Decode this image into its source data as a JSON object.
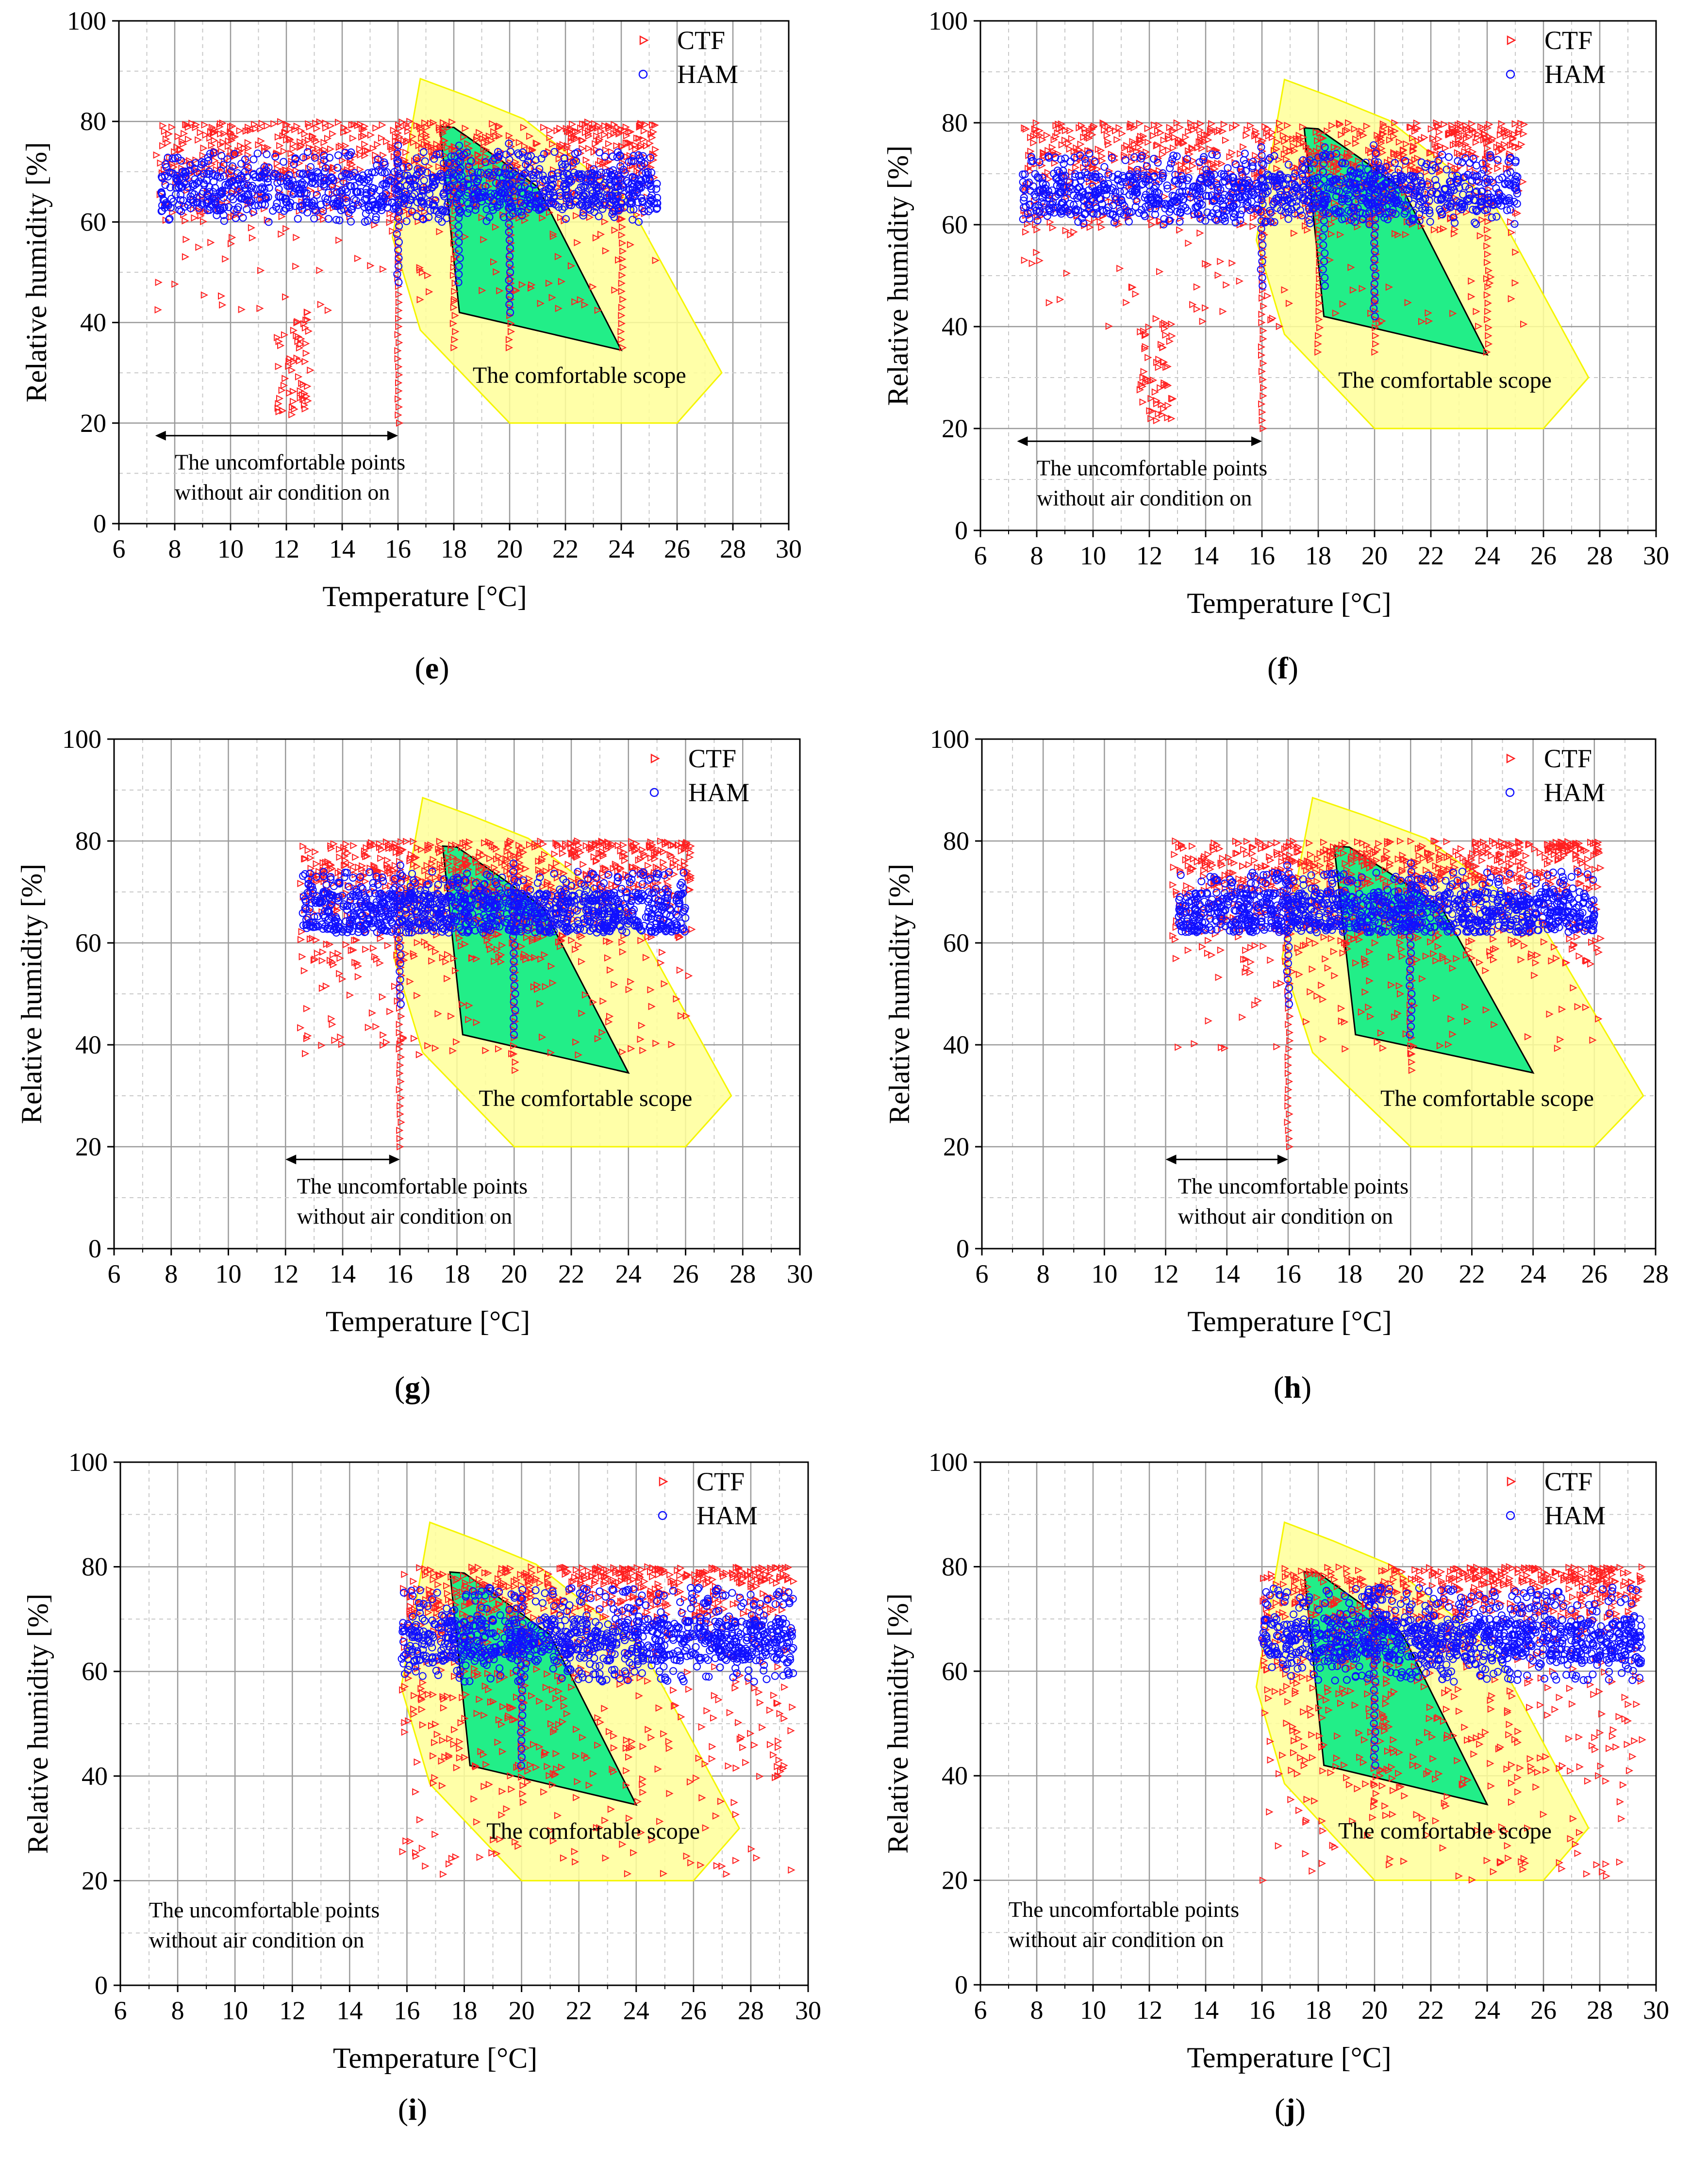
{
  "chart_data": [
    {
      "panel": "e",
      "type": "scatter",
      "xlabel": "Temperature [°C]",
      "ylabel": "Relative humidity [%]",
      "xlim": [
        6,
        30
      ],
      "ylim": [
        0,
        100
      ],
      "xticks": [
        6,
        8,
        10,
        12,
        14,
        16,
        18,
        20,
        22,
        24,
        26,
        28,
        30
      ],
      "yticks": [
        0,
        20,
        40,
        60,
        80,
        100
      ],
      "legend": [
        "CTF",
        "HAM"
      ],
      "comfort_label": "The comfortable scope",
      "uncomfortable_label": [
        "The uncomfortable points",
        "without air condition on"
      ],
      "arrow_range": [
        7.3,
        16
      ],
      "series": [
        {
          "name": "CTF",
          "tmin": 7.3,
          "tmax": 25.3,
          "band": [
            60,
            80
          ],
          "spikes": [
            16,
            18,
            20,
            24
          ],
          "low_tail": [
            12,
            21
          ]
        },
        {
          "name": "HAM",
          "tmin": 7.5,
          "tmax": 25.3,
          "band": [
            60,
            74
          ],
          "spikes": [
            16,
            18.2,
            20
          ]
        }
      ]
    },
    {
      "panel": "f",
      "type": "scatter",
      "xlabel": "Temperature [°C]",
      "ylabel": "Relative humidity [%]",
      "xlim": [
        6,
        30
      ],
      "ylim": [
        0,
        100
      ],
      "xticks": [
        6,
        8,
        10,
        12,
        14,
        16,
        18,
        20,
        22,
        24,
        26,
        28,
        30
      ],
      "yticks": [
        0,
        20,
        40,
        60,
        80,
        100
      ],
      "legend": [
        "CTF",
        "HAM"
      ],
      "comfort_label": "The comfortable scope",
      "uncomfortable_label": [
        "The uncomfortable points",
        "without air condition on"
      ],
      "arrow_range": [
        7.3,
        16
      ],
      "series": [
        {
          "name": "CTF",
          "tmin": 7.5,
          "tmax": 25.3,
          "band": [
            58,
            80
          ],
          "spikes": [
            16,
            18,
            20,
            24
          ],
          "low_tail": [
            12,
            21
          ]
        },
        {
          "name": "HAM",
          "tmin": 7.5,
          "tmax": 25.1,
          "band": [
            60,
            74
          ],
          "spikes": [
            16,
            18.2,
            20
          ]
        }
      ]
    },
    {
      "panel": "g",
      "type": "scatter",
      "xlabel": "Temperature [°C]",
      "ylabel": "Relative humidity [%]",
      "xlim": [
        6,
        30
      ],
      "ylim": [
        0,
        100
      ],
      "xticks": [
        6,
        8,
        10,
        12,
        14,
        16,
        18,
        20,
        22,
        24,
        26,
        28,
        30
      ],
      "yticks": [
        0,
        20,
        40,
        60,
        80,
        100
      ],
      "legend": [
        "CTF",
        "HAM"
      ],
      "comfort_label": "The comfortable scope",
      "uncomfortable_label": [
        "The uncomfortable points",
        "without air condition on"
      ],
      "arrow_range": [
        12,
        16
      ],
      "series": [
        {
          "name": "CTF",
          "tmin": 12.5,
          "tmax": 26.2,
          "band": [
            56,
            80
          ],
          "spikes": [
            16,
            20
          ]
        },
        {
          "name": "HAM",
          "tmin": 12.6,
          "tmax": 26,
          "band": [
            62,
            74
          ],
          "spikes": [
            16,
            20
          ]
        }
      ]
    },
    {
      "panel": "h",
      "type": "scatter",
      "xlabel": "Temperature [°C]",
      "ylabel": "Relative humidity [%]",
      "xlim": [
        6,
        28
      ],
      "ylim": [
        0,
        100
      ],
      "xticks": [
        6,
        8,
        10,
        12,
        14,
        16,
        18,
        20,
        22,
        24,
        26,
        28
      ],
      "yticks": [
        0,
        20,
        40,
        60,
        80,
        100
      ],
      "legend": [
        "CTF",
        "HAM"
      ],
      "comfort_label": "The comfortable scope",
      "uncomfortable_label": [
        "The uncomfortable points",
        "without air condition on"
      ],
      "arrow_range": [
        12,
        16
      ],
      "series": [
        {
          "name": "CTF",
          "tmin": 12.2,
          "tmax": 26.2,
          "band": [
            56,
            80
          ],
          "spikes": [
            16,
            20
          ]
        },
        {
          "name": "HAM",
          "tmin": 12.4,
          "tmax": 26,
          "band": [
            62,
            74
          ],
          "spikes": [
            16,
            20
          ]
        }
      ]
    },
    {
      "panel": "i",
      "type": "scatter",
      "xlabel": "Temperature [°C]",
      "ylabel": "Relative humidity [%]",
      "xlim": [
        6,
        30
      ],
      "ylim": [
        0,
        100
      ],
      "xticks": [
        6,
        8,
        10,
        12,
        14,
        16,
        18,
        20,
        22,
        24,
        26,
        28,
        30
      ],
      "yticks": [
        0,
        20,
        40,
        60,
        80,
        100
      ],
      "legend": [
        "CTF",
        "HAM"
      ],
      "comfort_label": "The comfortable scope",
      "uncomfortable_label": [
        "The uncomfortable points",
        "without air condition on"
      ],
      "arrow_range": null,
      "series": [
        {
          "name": "CTF",
          "tmin": 15.8,
          "tmax": 29.5,
          "band": [
            38,
            80
          ],
          "spikes": [
            20
          ]
        },
        {
          "name": "HAM",
          "tmin": 15.8,
          "tmax": 29.5,
          "band": [
            58,
            76
          ],
          "spikes": [
            20
          ]
        }
      ]
    },
    {
      "panel": "j",
      "type": "scatter",
      "xlabel": "Temperature [°C]",
      "ylabel": "Relative humidity [%]",
      "xlim": [
        6,
        30
      ],
      "ylim": [
        0,
        100
      ],
      "xticks": [
        6,
        8,
        10,
        12,
        14,
        16,
        18,
        20,
        22,
        24,
        26,
        28,
        30
      ],
      "yticks": [
        0,
        20,
        40,
        60,
        80,
        100
      ],
      "legend": [
        "CTF",
        "HAM"
      ],
      "comfort_label": "The comfortable scope",
      "uncomfortable_label": [
        "The uncomfortable points",
        "without air condition on"
      ],
      "arrow_range": null,
      "series": [
        {
          "name": "CTF",
          "tmin": 16,
          "tmax": 29.5,
          "band": [
            38,
            80
          ],
          "spikes": [
            20
          ]
        },
        {
          "name": "HAM",
          "tmin": 16,
          "tmax": 29.5,
          "band": [
            58,
            76
          ],
          "spikes": [
            20
          ]
        }
      ]
    }
  ],
  "comfort_zones": {
    "outer_yellow": [
      [
        16.8,
        88.5
      ],
      [
        18.5,
        85
      ],
      [
        20.5,
        80.5
      ],
      [
        22,
        74
      ],
      [
        24.2,
        64.5
      ],
      [
        27.6,
        30
      ],
      [
        26,
        20
      ],
      [
        20,
        20
      ],
      [
        16.8,
        38.5
      ],
      [
        15.8,
        57
      ]
    ],
    "inner_green": [
      [
        17.5,
        79
      ],
      [
        18,
        78.8
      ],
      [
        19.5,
        73
      ],
      [
        21,
        67
      ],
      [
        24,
        34.5
      ],
      [
        18.2,
        42
      ]
    ]
  },
  "labels": {
    "e": "(e)",
    "f": "(f)",
    "g": "(g)",
    "h": "(h)",
    "i": "(i)",
    "j": "(j)"
  },
  "colors": {
    "ctf": "#ff2020",
    "ham": "#1010ff",
    "yellow_fill": "#ffff99",
    "yellow_edge": "#f5f500",
    "green_fill": "#22ee88",
    "grid_major": "#9a9a9a",
    "grid_minor": "#c8c8c8"
  }
}
